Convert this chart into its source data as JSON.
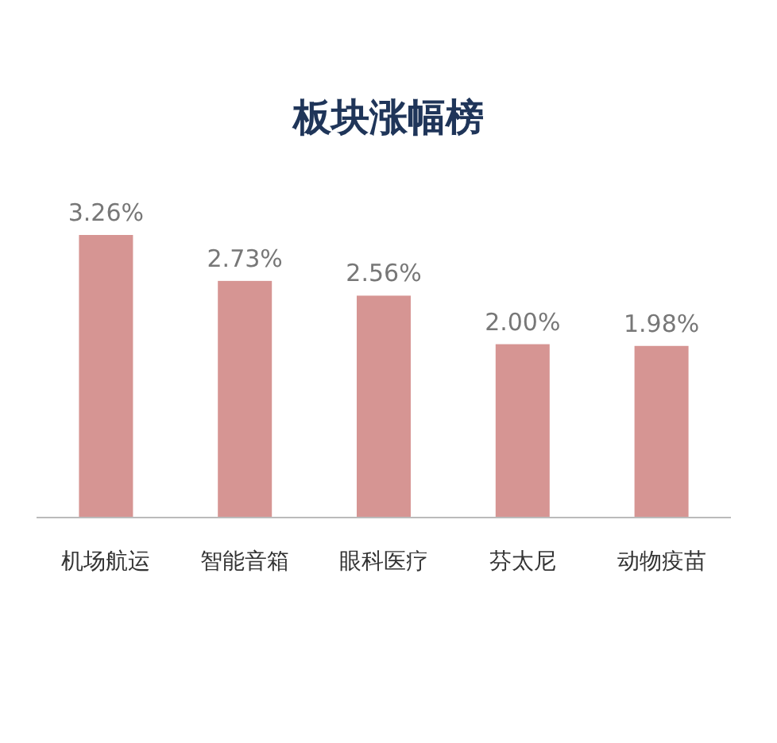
{
  "chart_data": {
    "type": "bar",
    "title": "板块涨幅榜",
    "categories": [
      "机场航运",
      "智能音箱",
      "眼科医疗",
      "芬太尼",
      "动物疫苗"
    ],
    "values": [
      3.26,
      2.73,
      2.56,
      2.0,
      1.98
    ],
    "value_labels": [
      "3.26%",
      "2.73%",
      "2.56%",
      "2.00%",
      "1.98%"
    ],
    "color": "#d69593"
  }
}
